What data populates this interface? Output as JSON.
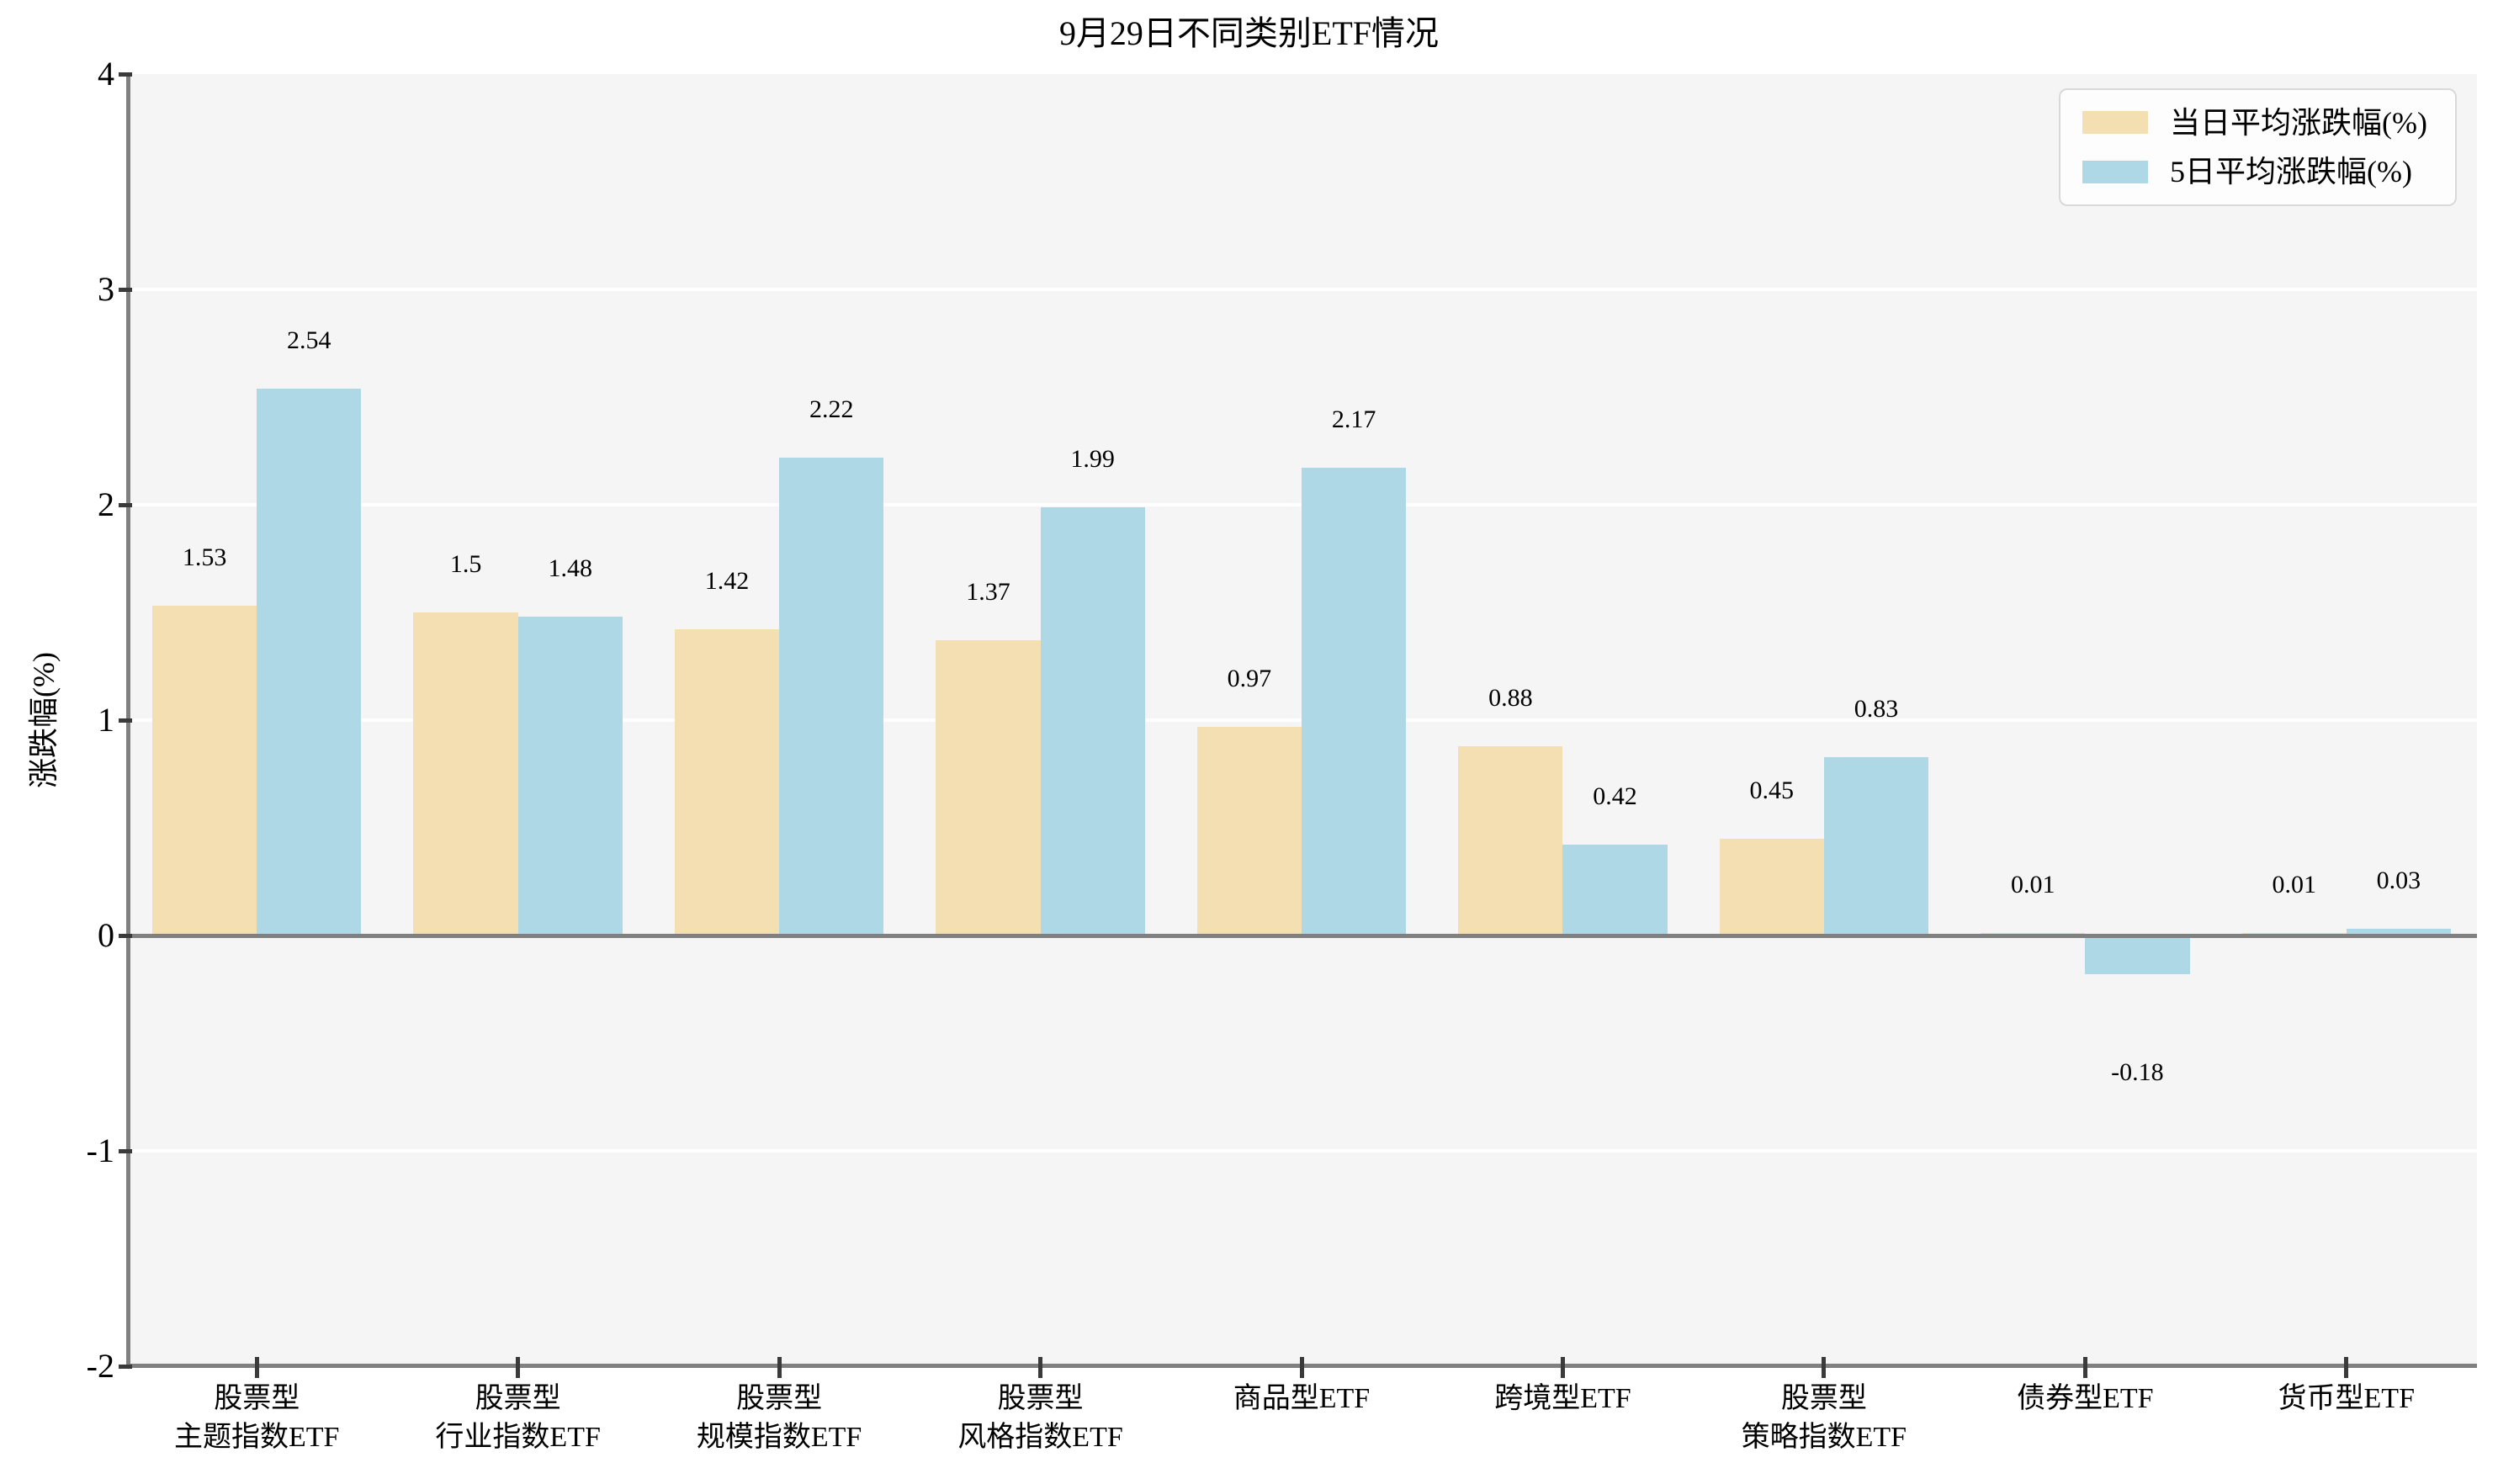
{
  "figure": {
    "title": "9月29日不同类别ETF情况",
    "ylabel": "涨跌幅(%)"
  },
  "legend": {
    "position": "upper right",
    "items": [
      {
        "label": "当日平均涨跌幅(%)",
        "color": "#f3dfb2"
      },
      {
        "label": "5日平均涨跌幅(%)",
        "color": "#aed8e5"
      }
    ]
  },
  "chart_data": {
    "type": "bar",
    "title": "9月29日不同类别ETF情况",
    "xlabel": "",
    "ylabel": "涨跌幅(%)",
    "categories": [
      "股票型\n主题指数ETF",
      "股票型\n行业指数ETF",
      "股票型\n规模指数ETF",
      "股票型\n风格指数ETF",
      "商品型ETF",
      "跨境型ETF",
      "股票型\n策略指数ETF",
      "债券型ETF",
      "货币型ETF"
    ],
    "series": [
      {
        "name": "当日平均涨跌幅(%)",
        "color": "#f3dfb2",
        "values": [
          1.53,
          1.5,
          1.42,
          1.37,
          0.97,
          0.88,
          0.45,
          0.01,
          0.01
        ],
        "labels": [
          "1.53",
          "1.5",
          "1.42",
          "1.37",
          "0.97",
          "0.88",
          "0.45",
          "0.01",
          "0.01"
        ]
      },
      {
        "name": "5日平均涨跌幅(%)",
        "color": "#aed8e5",
        "values": [
          2.54,
          1.48,
          2.22,
          1.99,
          2.17,
          0.42,
          0.83,
          -0.18,
          0.03
        ],
        "labels": [
          "2.54",
          "1.48",
          "2.22",
          "1.99",
          "2.17",
          "0.42",
          "0.83",
          "-0.18",
          "0.03"
        ]
      }
    ],
    "ylim": [
      -2,
      4
    ],
    "yticks": [
      4,
      3,
      2,
      1,
      0,
      -1,
      -2
    ],
    "grid": "horizontal-white",
    "legend_position": "upper right",
    "plot_bg": "#f5f5f5",
    "axis_color": "#808080"
  }
}
